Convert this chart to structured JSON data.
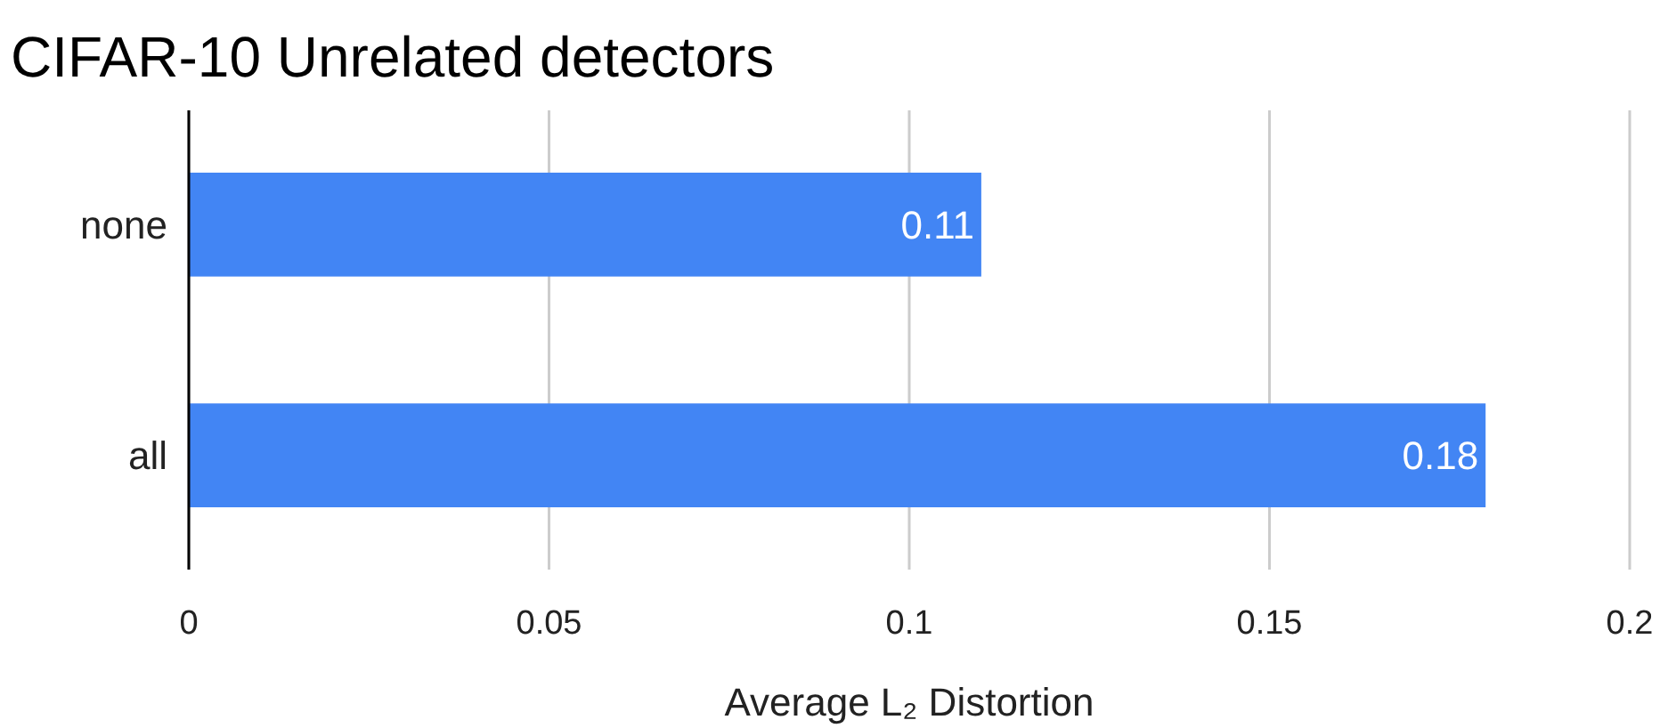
{
  "chart_data": {
    "type": "bar",
    "orientation": "horizontal",
    "title": "CIFAR-10 Unrelated detectors",
    "xlabel": "Average L₂ Distortion",
    "categories": [
      "none",
      "all"
    ],
    "values": [
      0.11,
      0.18
    ],
    "color": "#4285f4",
    "xlim": [
      0,
      0.2
    ],
    "xticks": [
      0,
      0.05,
      0.1,
      0.15,
      0.2
    ],
    "grid": "x",
    "data_labels": true
  }
}
